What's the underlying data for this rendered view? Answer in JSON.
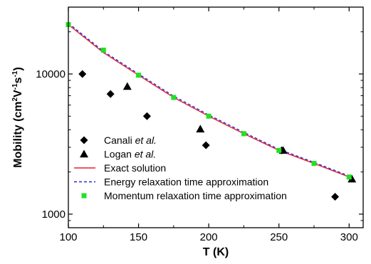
{
  "chart_data": {
    "type": "scatter",
    "xlabel": "T (K)",
    "ylabel": {
      "prefix": "Mobility (cm",
      "sup1": "2",
      "mid1": "V",
      "sup2": "-1",
      "mid2": "s",
      "sup3": "-1",
      "suffix": ")"
    },
    "xlim": [
      100,
      310
    ],
    "ylim": [
      800,
      30000
    ],
    "yscale": "log",
    "x_ticks": [
      100,
      150,
      200,
      250,
      300
    ],
    "x_tick_labels": [
      "100",
      "150",
      "200",
      "250",
      "300"
    ],
    "y_ticks": [
      1000,
      10000
    ],
    "y_tick_labels": [
      "1000",
      "10000"
    ],
    "legend_position": "lower-left",
    "series": [
      {
        "name_parts": [
          "Canali ",
          "et al."
        ],
        "marker": "diamond",
        "color": "#000000",
        "x": [
          110,
          130,
          156,
          198,
          252,
          290
        ],
        "y": [
          10000,
          7200,
          5000,
          3100,
          2850,
          1330
        ]
      },
      {
        "name_parts": [
          "Logan ",
          "et al."
        ],
        "marker": "triangle",
        "color": "#000000",
        "x": [
          142,
          194,
          253,
          302
        ],
        "y": [
          8150,
          4050,
          2850,
          1780
        ]
      },
      {
        "name_parts": [
          "Exact solution",
          ""
        ],
        "marker": "line",
        "color": "#e8202a",
        "x": [
          100,
          125,
          150,
          175,
          200,
          225,
          250,
          275,
          300
        ],
        "y": [
          22500,
          14200,
          9800,
          6800,
          5000,
          3750,
          2850,
          2300,
          1840
        ]
      },
      {
        "name_parts": [
          "Energy relaxation time approximation",
          ""
        ],
        "marker": "dashed",
        "color": "#1f2fd6",
        "x": [
          100,
          125,
          150,
          175,
          200,
          225,
          250,
          275,
          300
        ],
        "y": [
          23000,
          14500,
          10000,
          6950,
          5100,
          3830,
          2900,
          2340,
          1870
        ]
      },
      {
        "name_parts": [
          "Momentum relaxation time approximation",
          ""
        ],
        "marker": "square",
        "color": "#22e024",
        "x": [
          100,
          125,
          150,
          175,
          200,
          225,
          250,
          275,
          300
        ],
        "y": [
          22500,
          14800,
          9800,
          6800,
          5000,
          3750,
          2850,
          2300,
          1840
        ]
      }
    ]
  }
}
